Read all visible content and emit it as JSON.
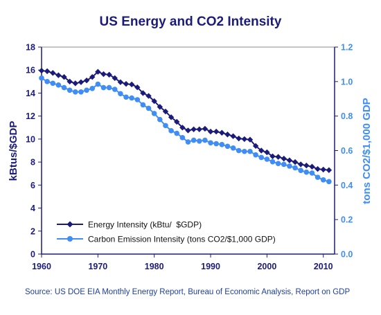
{
  "chart_data": {
    "type": "line",
    "title": "US Energy and CO2 Intensity",
    "ylabel": "kBtus/$GDP",
    "ylabel_right": "tons CO2/$1,000 GDP",
    "xlim": [
      1960,
      2012
    ],
    "ylim": [
      0,
      18
    ],
    "ylim_right": [
      0,
      1.2
    ],
    "x_ticks": [
      "1960",
      "1970",
      "1980",
      "1990",
      "2000",
      "2010"
    ],
    "y_ticks": [
      "0",
      "2",
      "4",
      "6",
      "8",
      "10",
      "12",
      "14",
      "16",
      "18"
    ],
    "y_ticks_right": [
      "0.0",
      "0.2",
      "0.4",
      "0.6",
      "0.8",
      "1.0",
      "1.2"
    ],
    "grid": false,
    "legend_position": "bottom-left",
    "colors": {
      "left_axis": "#1b1b7a",
      "energy": "#1b1b7a",
      "carbon": "#3f8df5",
      "right_axis": "#3f8df5",
      "title": "#1b1b7a"
    },
    "series": [
      {
        "name": "Energy Intensity (kBtu/  $GDP)",
        "axis": "left",
        "marker": "diamond",
        "x": [
          1960,
          1961,
          1962,
          1963,
          1964,
          1965,
          1966,
          1967,
          1968,
          1969,
          1970,
          1971,
          1972,
          1973,
          1974,
          1975,
          1976,
          1977,
          1978,
          1979,
          1980,
          1981,
          1982,
          1983,
          1984,
          1985,
          1986,
          1987,
          1988,
          1989,
          1990,
          1991,
          1992,
          1993,
          1994,
          1995,
          1996,
          1997,
          1998,
          1999,
          2000,
          2001,
          2002,
          2003,
          2004,
          2005,
          2006,
          2007,
          2008,
          2009,
          2010,
          2011
        ],
        "y": [
          15.95,
          15.9,
          15.75,
          15.55,
          15.4,
          15.0,
          14.85,
          14.95,
          15.1,
          15.4,
          15.85,
          15.65,
          15.6,
          15.3,
          14.95,
          14.8,
          14.75,
          14.5,
          14.0,
          13.75,
          13.3,
          12.8,
          12.4,
          11.9,
          11.5,
          11.0,
          10.75,
          10.85,
          10.85,
          10.9,
          10.65,
          10.65,
          10.55,
          10.4,
          10.25,
          10.05,
          10.0,
          9.95,
          9.4,
          9.0,
          8.85,
          8.5,
          8.45,
          8.3,
          8.15,
          8.0,
          7.8,
          7.7,
          7.6,
          7.4,
          7.35,
          7.3
        ]
      },
      {
        "name": "Carbon Emission Intensity (tons CO2/$1,000 GDP)",
        "axis": "right",
        "marker": "circle",
        "x": [
          1960,
          1961,
          1962,
          1963,
          1964,
          1965,
          1966,
          1967,
          1968,
          1969,
          1970,
          1971,
          1972,
          1973,
          1974,
          1975,
          1976,
          1977,
          1978,
          1979,
          1980,
          1981,
          1982,
          1983,
          1984,
          1985,
          1986,
          1987,
          1988,
          1989,
          1990,
          1991,
          1992,
          1993,
          1994,
          1995,
          1996,
          1997,
          1998,
          1999,
          2000,
          2001,
          2002,
          2003,
          2004,
          2005,
          2006,
          2007,
          2008,
          2009,
          2010,
          2011
        ],
        "y": [
          1.02,
          1.0,
          0.99,
          0.98,
          0.965,
          0.95,
          0.94,
          0.94,
          0.95,
          0.96,
          0.985,
          0.965,
          0.965,
          0.955,
          0.93,
          0.91,
          0.905,
          0.895,
          0.865,
          0.845,
          0.815,
          0.78,
          0.745,
          0.715,
          0.7,
          0.675,
          0.65,
          0.66,
          0.655,
          0.66,
          0.645,
          0.64,
          0.635,
          0.625,
          0.615,
          0.6,
          0.595,
          0.595,
          0.575,
          0.56,
          0.55,
          0.535,
          0.525,
          0.52,
          0.51,
          0.5,
          0.485,
          0.475,
          0.47,
          0.445,
          0.43,
          0.42
        ]
      }
    ]
  },
  "source_text": "Source: US DOE EIA Monthly Energy Report, Bureau of Economic Analysis, Report on GDP"
}
